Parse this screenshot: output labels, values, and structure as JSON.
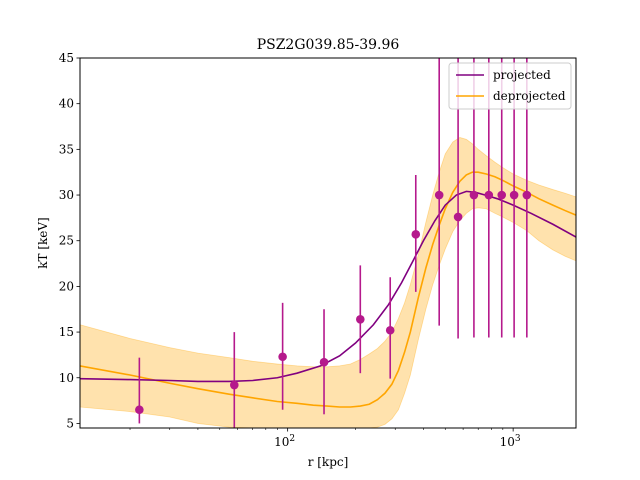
{
  "chart_data": {
    "type": "line",
    "title": "PSZ2G039.85-39.96",
    "xlabel": "r [kpc]",
    "ylabel": "kT [keV]",
    "xscale": "log",
    "xlim": [
      12,
      1900
    ],
    "ylim": [
      4.5,
      45
    ],
    "yticks": [
      5,
      10,
      15,
      20,
      25,
      30,
      35,
      40,
      45
    ],
    "xticks": [
      {
        "value": 100,
        "label": "10^2"
      },
      {
        "value": 1000,
        "label": "10^3"
      }
    ],
    "grid": false,
    "legend": {
      "position": "top-right"
    },
    "series": [
      {
        "name": "projected",
        "kind": "line",
        "color": "#800080",
        "x": [
          12,
          20,
          30,
          40,
          55,
          70,
          90,
          110,
          140,
          170,
          200,
          240,
          280,
          320,
          360,
          400,
          450,
          500,
          560,
          620,
          680,
          750,
          850,
          1000,
          1200,
          1500,
          1900
        ],
        "y": [
          9.9,
          9.8,
          9.7,
          9.6,
          9.6,
          9.7,
          10.0,
          10.5,
          11.3,
          12.4,
          13.8,
          15.8,
          18.0,
          20.4,
          22.8,
          25.0,
          27.2,
          28.9,
          30.0,
          30.4,
          30.3,
          30.0,
          29.6,
          28.9,
          28.0,
          26.8,
          25.4
        ]
      },
      {
        "name": "deprojected",
        "kind": "line",
        "color": "#ffa500",
        "x": [
          12,
          20,
          30,
          40,
          55,
          70,
          90,
          110,
          130,
          150,
          170,
          190,
          210,
          230,
          250,
          270,
          290,
          310,
          330,
          350,
          380,
          410,
          440,
          470,
          500,
          540,
          580,
          620,
          660,
          700,
          760,
          830,
          900,
          1000,
          1150,
          1300,
          1500,
          1700,
          1900
        ],
        "y": [
          11.3,
          10.3,
          9.4,
          8.8,
          8.2,
          7.8,
          7.4,
          7.2,
          7.0,
          6.9,
          6.8,
          6.8,
          6.9,
          7.1,
          7.6,
          8.3,
          9.3,
          10.8,
          12.8,
          15.0,
          18.8,
          22.0,
          24.6,
          26.7,
          28.5,
          30.3,
          31.5,
          32.2,
          32.5,
          32.5,
          32.3,
          32.0,
          31.6,
          31.0,
          30.3,
          29.6,
          28.9,
          28.3,
          27.8
        ]
      },
      {
        "name": "deprojected-band",
        "kind": "band",
        "color": "#ffa500",
        "x": [
          12,
          20,
          30,
          40,
          55,
          70,
          90,
          110,
          130,
          150,
          170,
          190,
          210,
          230,
          250,
          270,
          290,
          310,
          330,
          350,
          380,
          410,
          440,
          470,
          500,
          540,
          580,
          620,
          660,
          700,
          760,
          830,
          900,
          1000,
          1150,
          1300,
          1500,
          1700,
          1900
        ],
        "upper": [
          15.8,
          14.3,
          13.3,
          12.7,
          12.2,
          11.8,
          11.5,
          11.3,
          11.2,
          11.2,
          11.3,
          11.5,
          12.0,
          12.6,
          13.2,
          14.0,
          15.0,
          16.5,
          18.2,
          20.2,
          23.5,
          27.0,
          30.0,
          32.5,
          34.5,
          35.8,
          36.3,
          36.1,
          35.6,
          35.0,
          34.3,
          33.6,
          33.0,
          32.3,
          31.6,
          31.1,
          30.6,
          30.2,
          29.8
        ],
        "lower": [
          6.8,
          6.3,
          5.7,
          5.0,
          4.6,
          4.5,
          4.5,
          4.5,
          4.5,
          4.5,
          4.5,
          4.5,
          4.5,
          4.5,
          4.6,
          4.9,
          5.5,
          6.5,
          8.3,
          10.3,
          14.2,
          17.5,
          20.2,
          22.3,
          24.1,
          26.0,
          27.2,
          28.0,
          28.5,
          28.6,
          28.5,
          28.0,
          27.6,
          27.0,
          26.1,
          25.0,
          24.0,
          23.3,
          22.8
        ]
      },
      {
        "name": "data",
        "kind": "errorbar",
        "color": "#b5198c",
        "x": [
          22,
          58,
          95,
          145,
          210,
          285,
          370,
          470,
          570,
          670,
          780,
          890,
          1010,
          1150
        ],
        "y": [
          6.5,
          9.2,
          12.3,
          11.7,
          16.4,
          15.2,
          25.7,
          30.0,
          27.6,
          30.0,
          30.0,
          30.0,
          30.0,
          30.0
        ],
        "yerr_low": [
          1.5,
          4.7,
          5.8,
          5.7,
          5.9,
          5.3,
          6.3,
          14.3,
          13.3,
          15.6,
          15.6,
          15.6,
          15.6,
          15.6
        ],
        "yerr_high": [
          5.7,
          5.8,
          5.9,
          5.8,
          5.9,
          5.8,
          6.5,
          15.0,
          17.4,
          15.0,
          15.0,
          15.0,
          15.0,
          15.0
        ]
      }
    ]
  }
}
